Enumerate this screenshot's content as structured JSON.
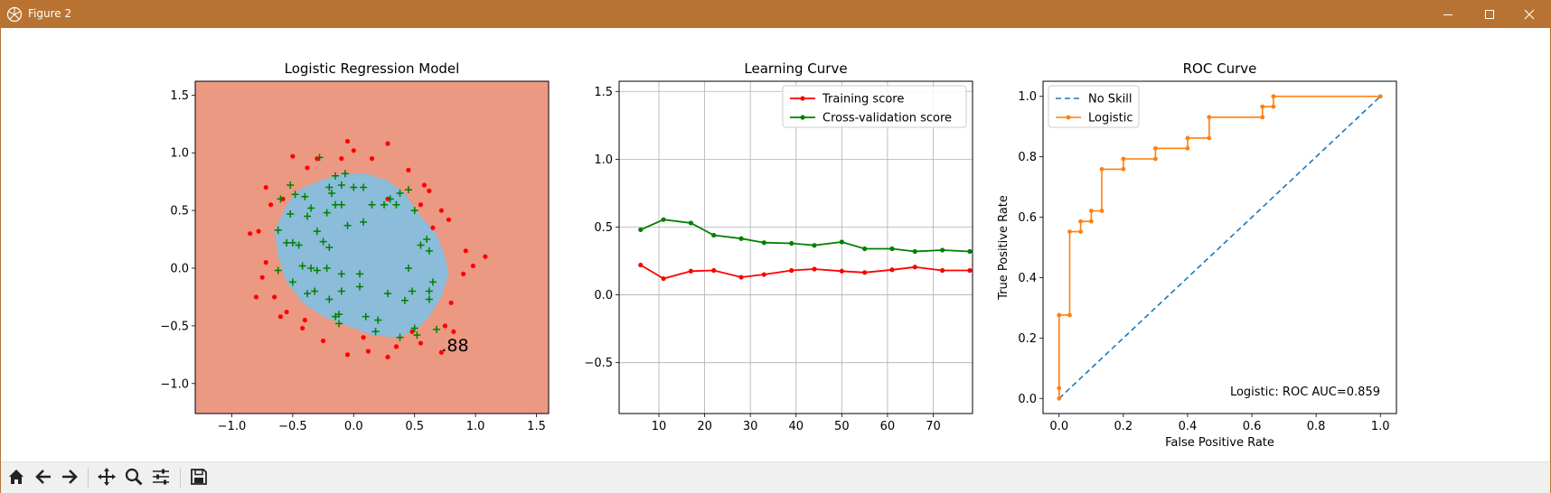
{
  "window": {
    "title": "Figure 2",
    "controls": [
      "minimize",
      "maximize",
      "close"
    ]
  },
  "toolbar": {
    "buttons": [
      "home-icon",
      "back-icon",
      "forward-icon",
      "pan-icon",
      "zoom-icon",
      "configure-subplots-icon",
      "save-icon"
    ]
  },
  "colors": {
    "titlebar": "#b87333",
    "region_outside": "#eb9983",
    "region_inside": "#8bbcd9",
    "class0": "#ff0000",
    "class1": "#008000",
    "training": "#ff0000",
    "cv": "#008000",
    "noskill": "#1f77b4",
    "logistic": "#ff7f0e"
  },
  "chart_data": [
    {
      "type": "scatter",
      "title": "Logistic Regression Model",
      "xlabel": "",
      "ylabel": "",
      "xlim": [
        -1.3,
        1.6
      ],
      "ylim": [
        -1.26,
        1.62
      ],
      "xticks": [
        "−1.0",
        "−0.5",
        "0.0",
        "0.5",
        "1.0",
        "1.5"
      ],
      "yticks": [
        "−1.0",
        "−0.5",
        "0.0",
        "0.5",
        "1.0",
        "1.5"
      ],
      "annotation": ".88",
      "series": [
        {
          "marker": "dot",
          "points": [
            [
              -0.5,
              0.97
            ],
            [
              -0.38,
              0.87
            ],
            [
              -0.3,
              0.95
            ],
            [
              -0.1,
              0.95
            ],
            [
              -0.05,
              1.1
            ],
            [
              0.0,
              1.02
            ],
            [
              0.15,
              0.95
            ],
            [
              0.28,
              1.08
            ],
            [
              -0.72,
              0.7
            ],
            [
              -0.68,
              0.55
            ],
            [
              -0.78,
              0.32
            ],
            [
              -0.85,
              0.3
            ],
            [
              0.45,
              0.85
            ],
            [
              0.58,
              0.72
            ],
            [
              0.62,
              0.67
            ],
            [
              0.55,
              0.55
            ],
            [
              0.72,
              0.5
            ],
            [
              0.65,
              0.35
            ],
            [
              0.78,
              0.42
            ],
            [
              0.92,
              0.15
            ],
            [
              1.08,
              0.1
            ],
            [
              0.98,
              0.02
            ],
            [
              0.9,
              -0.05
            ],
            [
              0.8,
              -0.3
            ],
            [
              0.75,
              -0.5
            ],
            [
              0.82,
              -0.55
            ],
            [
              0.72,
              -0.73
            ],
            [
              0.55,
              -0.65
            ],
            [
              0.48,
              -0.55
            ],
            [
              0.35,
              -0.68
            ],
            [
              0.28,
              -0.77
            ],
            [
              0.12,
              -0.72
            ],
            [
              0.08,
              -0.6
            ],
            [
              -0.05,
              -0.75
            ],
            [
              -0.25,
              -0.63
            ],
            [
              -0.42,
              -0.52
            ],
            [
              -0.4,
              -0.45
            ],
            [
              -0.55,
              -0.38
            ],
            [
              -0.65,
              -0.25
            ],
            [
              -0.6,
              -0.42
            ],
            [
              -0.75,
              -0.08
            ],
            [
              -0.72,
              0.05
            ],
            [
              -0.8,
              -0.25
            ],
            [
              -0.58,
              0.6
            ],
            [
              0.28,
              0.6
            ]
          ]
        },
        {
          "marker": "plus",
          "points": [
            [
              -0.28,
              0.96
            ],
            [
              -0.52,
              0.72
            ],
            [
              -0.6,
              0.6
            ],
            [
              -0.48,
              0.64
            ],
            [
              -0.18,
              0.65
            ],
            [
              -0.2,
              0.7
            ],
            [
              -0.15,
              0.8
            ],
            [
              -0.1,
              0.72
            ],
            [
              0.0,
              0.7
            ],
            [
              -0.07,
              0.82
            ],
            [
              0.08,
              0.7
            ],
            [
              -0.4,
              0.62
            ],
            [
              -0.38,
              0.45
            ],
            [
              -0.52,
              0.47
            ],
            [
              -0.35,
              0.52
            ],
            [
              -0.22,
              0.48
            ],
            [
              -0.15,
              0.55
            ],
            [
              -0.1,
              0.55
            ],
            [
              0.15,
              0.55
            ],
            [
              0.25,
              0.55
            ],
            [
              0.3,
              0.6
            ],
            [
              0.35,
              0.55
            ],
            [
              0.38,
              0.65
            ],
            [
              0.45,
              0.68
            ],
            [
              0.5,
              0.5
            ],
            [
              -0.62,
              0.33
            ],
            [
              -0.3,
              0.32
            ],
            [
              -0.55,
              0.22
            ],
            [
              -0.5,
              0.22
            ],
            [
              -0.45,
              0.2
            ],
            [
              -0.25,
              0.23
            ],
            [
              -0.2,
              0.18
            ],
            [
              -0.05,
              0.37
            ],
            [
              0.08,
              0.4
            ],
            [
              0.55,
              0.2
            ],
            [
              0.6,
              0.25
            ],
            [
              0.62,
              0.15
            ],
            [
              -0.42,
              0.02
            ],
            [
              -0.35,
              0.0
            ],
            [
              -0.3,
              -0.02
            ],
            [
              -0.22,
              0.0
            ],
            [
              -0.1,
              -0.05
            ],
            [
              0.05,
              -0.05
            ],
            [
              0.45,
              0.0
            ],
            [
              0.65,
              -0.12
            ],
            [
              0.62,
              -0.2
            ],
            [
              0.62,
              -0.27
            ],
            [
              -0.62,
              -0.02
            ],
            [
              -0.5,
              -0.12
            ],
            [
              -0.38,
              -0.22
            ],
            [
              -0.32,
              -0.2
            ],
            [
              -0.1,
              -0.2
            ],
            [
              0.05,
              -0.16
            ],
            [
              0.28,
              -0.22
            ],
            [
              0.48,
              -0.2
            ],
            [
              0.42,
              -0.28
            ],
            [
              -0.2,
              -0.27
            ],
            [
              -0.15,
              -0.42
            ],
            [
              -0.12,
              -0.4
            ],
            [
              0.1,
              -0.42
            ],
            [
              0.2,
              -0.45
            ],
            [
              0.18,
              -0.55
            ],
            [
              0.5,
              -0.52
            ],
            [
              0.52,
              -0.58
            ],
            [
              0.38,
              -0.6
            ],
            [
              0.68,
              -0.53
            ],
            [
              -0.12,
              -0.48
            ]
          ]
        }
      ]
    },
    {
      "type": "line",
      "title": "Learning Curve",
      "xlabel": "",
      "ylabel": "",
      "xlim": [
        1.3,
        78.6
      ],
      "ylim": [
        -0.875,
        1.575
      ],
      "xticks": [
        10,
        20,
        30,
        40,
        50,
        60,
        70
      ],
      "yticks": [
        "−0.5",
        "0.0",
        "0.5",
        "1.0",
        "1.5"
      ],
      "legend": "top-right",
      "series": [
        {
          "name": "Training score",
          "color": "#ff0000",
          "x": [
            6,
            11,
            17,
            22,
            28,
            33,
            39,
            44,
            50,
            55,
            61,
            66,
            72,
            78
          ],
          "y": [
            0.22,
            0.12,
            0.175,
            0.18,
            0.13,
            0.15,
            0.18,
            0.19,
            0.175,
            0.165,
            0.185,
            0.205,
            0.18,
            0.18
          ]
        },
        {
          "name": "Cross-validation score",
          "color": "#008000",
          "x": [
            6,
            11,
            17,
            22,
            28,
            33,
            39,
            44,
            50,
            55,
            61,
            66,
            72,
            78
          ],
          "y": [
            0.48,
            0.555,
            0.53,
            0.44,
            0.415,
            0.385,
            0.38,
            0.365,
            0.39,
            0.34,
            0.34,
            0.32,
            0.33,
            0.32
          ]
        }
      ]
    },
    {
      "type": "line",
      "title": "ROC Curve",
      "xlabel": "False Positive Rate",
      "ylabel": "True Positive Rate",
      "xlim": [
        -0.05,
        1.05
      ],
      "ylim": [
        -0.05,
        1.05
      ],
      "xticks": [
        "0.0",
        "0.2",
        "0.4",
        "0.6",
        "0.8",
        "1.0"
      ],
      "yticks": [
        "0.0",
        "0.2",
        "0.4",
        "0.6",
        "0.8",
        "1.0"
      ],
      "legend": "top-left",
      "annotation": "Logistic: ROC AUC=0.859",
      "series": [
        {
          "name": "No Skill",
          "color": "#1f77b4",
          "style": "dashed",
          "x": [
            0,
            1
          ],
          "y": [
            0,
            1
          ]
        },
        {
          "name": "Logistic",
          "color": "#ff7f0e",
          "style": "step-markers",
          "x": [
            0,
            0,
            0,
            0.033,
            0.033,
            0.067,
            0.067,
            0.1,
            0.1,
            0.133,
            0.133,
            0.2,
            0.2,
            0.3,
            0.3,
            0.4,
            0.4,
            0.467,
            0.467,
            0.633,
            0.633,
            0.667,
            0.667,
            1.0
          ],
          "y": [
            0,
            0.034,
            0.276,
            0.276,
            0.552,
            0.552,
            0.586,
            0.586,
            0.621,
            0.621,
            0.759,
            0.759,
            0.793,
            0.793,
            0.828,
            0.828,
            0.862,
            0.862,
            0.931,
            0.931,
            0.966,
            0.966,
            1.0,
            1.0
          ]
        }
      ]
    }
  ]
}
